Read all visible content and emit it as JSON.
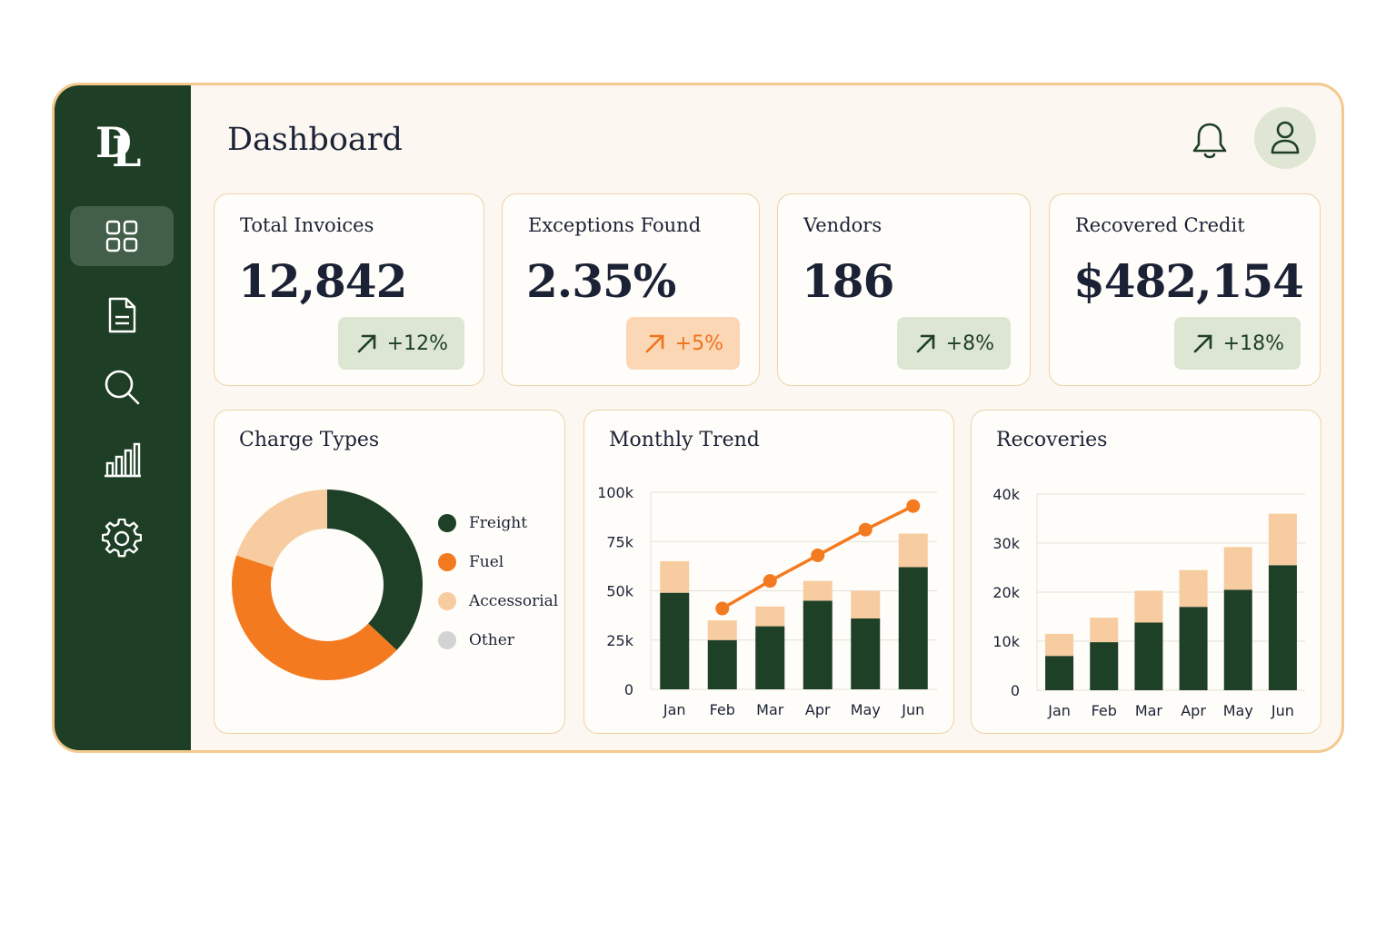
{
  "app": {
    "logo_letters": [
      "D",
      "L"
    ],
    "title": "Dashboard"
  },
  "colors": {
    "sidebar": "#1e3f25",
    "dark_green": "#1e4027",
    "orange": "#f47a20",
    "peach": "#f6cca0",
    "gray": "#d3d3d3",
    "card_border": "#f0d1a8"
  },
  "sidebar": {
    "items": [
      {
        "icon": "grid-icon",
        "active": true
      },
      {
        "icon": "document-icon",
        "active": false
      },
      {
        "icon": "search-icon",
        "active": false
      },
      {
        "icon": "bar-chart-icon",
        "active": false
      },
      {
        "icon": "gear-icon",
        "active": false
      }
    ]
  },
  "header": {
    "bell_icon": "bell-icon",
    "avatar_icon": "user-icon"
  },
  "kpis": [
    {
      "label": "Total Invoices",
      "value": "12,842",
      "delta": "+12%",
      "tone": "green"
    },
    {
      "label": "Exceptions Found",
      "value": "2.35%",
      "delta": "+5%",
      "tone": "orange"
    },
    {
      "label": "Vendors",
      "value": "186",
      "delta": "+8%",
      "tone": "green"
    },
    {
      "label": "Recovered Credit",
      "value": "$482,154",
      "delta": "+18%",
      "tone": "green"
    }
  ],
  "panels": {
    "charge_types": {
      "title": "Charge Types"
    },
    "monthly_trend": {
      "title": "Monthly Trend"
    },
    "recoveries": {
      "title": "Recoveries"
    }
  },
  "chart_data": [
    {
      "type": "pie",
      "title": "Charge Types",
      "labels": [
        "Freight",
        "Fuel",
        "Accessorial",
        "Other"
      ],
      "values": [
        37,
        43,
        20,
        0
      ],
      "colors": [
        "#1e4027",
        "#f47a20",
        "#f6cca0",
        "#d3d3d3"
      ],
      "legend": "right"
    },
    {
      "type": "bar",
      "title": "Monthly Trend",
      "categories": [
        "Jan",
        "Feb",
        "Mar",
        "Apr",
        "May",
        "Jun"
      ],
      "series": [
        {
          "values": [
            49,
            25,
            32,
            45,
            36,
            62
          ],
          "color": "#1e4027"
        },
        {
          "values": [
            16,
            10,
            10,
            10,
            14,
            17
          ],
          "color": "#f6cca0"
        },
        {
          "type": "line",
          "values": [
            null,
            41,
            55,
            68,
            81,
            93
          ],
          "color": "#f47a20"
        }
      ],
      "stacked": true,
      "yticks": [
        "0",
        "25k",
        "50k",
        "75k",
        "100k"
      ],
      "ylim": [
        0,
        100
      ],
      "grid": true
    },
    {
      "type": "bar",
      "title": "Recoveries",
      "categories": [
        "Jan",
        "Feb",
        "Mar",
        "Apr",
        "May",
        "Jun"
      ],
      "series": [
        {
          "values": [
            7,
            9.8,
            13.8,
            17,
            20.5,
            25.5
          ],
          "color": "#1e4027"
        },
        {
          "values": [
            4.5,
            5,
            6.5,
            7.5,
            8.7,
            10.5
          ],
          "color": "#f6cca0"
        }
      ],
      "stacked": true,
      "yticks": [
        "0",
        "10k",
        "20k",
        "30k",
        "40k"
      ],
      "ylim": [
        0,
        40
      ],
      "grid": true
    }
  ]
}
